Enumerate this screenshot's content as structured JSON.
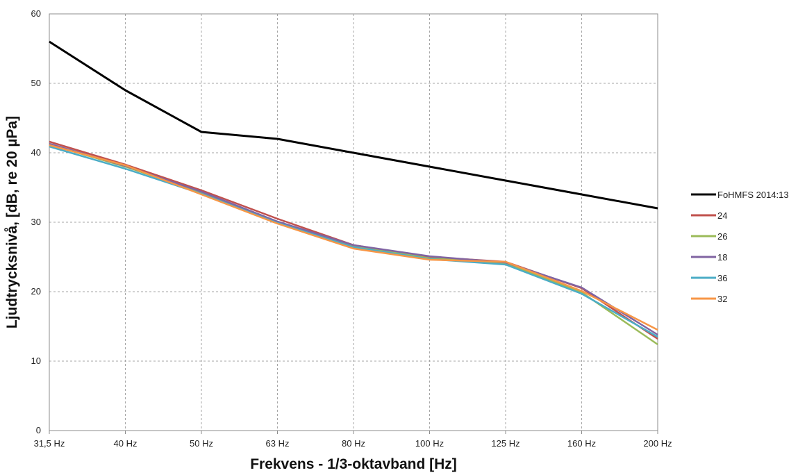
{
  "chart_data": {
    "type": "line",
    "title": "",
    "xlabel": "Frekvens - 1/3-oktavband [Hz]",
    "ylabel": "Ljudtrycksnivå, [dB, re 20 µPa]",
    "categories": [
      "31,5 Hz",
      "40 Hz",
      "50 Hz",
      "63 Hz",
      "80 Hz",
      "100 Hz",
      "125 Hz",
      "160 Hz",
      "200 Hz"
    ],
    "ylim": [
      0,
      60
    ],
    "yticks": [
      0,
      10,
      20,
      30,
      40,
      50,
      60
    ],
    "grid": true,
    "legend_position": "right",
    "series": [
      {
        "name": "FoHMFS 2014:13",
        "color": "#000000",
        "values": [
          56,
          49,
          43,
          42,
          40,
          38,
          36,
          34,
          32
        ]
      },
      {
        "name": "24",
        "color": "#c0504d",
        "values": [
          41.6,
          38.3,
          34.6,
          30.5,
          26.7,
          25.0,
          24.3,
          20.5,
          13.2
        ]
      },
      {
        "name": "26",
        "color": "#9bbb59",
        "values": [
          41.2,
          38.0,
          34.3,
          30.0,
          26.6,
          24.8,
          24.1,
          19.9,
          12.4
        ]
      },
      {
        "name": "18",
        "color": "#8064a2",
        "values": [
          41.3,
          38.1,
          34.4,
          30.1,
          26.7,
          25.1,
          24.2,
          20.6,
          13.8
        ]
      },
      {
        "name": "36",
        "color": "#4bacc6",
        "values": [
          40.9,
          37.7,
          34.1,
          29.9,
          26.4,
          24.7,
          23.9,
          19.7,
          13.5
        ]
      },
      {
        "name": "32",
        "color": "#f79646",
        "values": [
          41.1,
          38.2,
          34.0,
          29.8,
          26.2,
          24.6,
          24.3,
          20.1,
          14.5
        ]
      }
    ]
  }
}
